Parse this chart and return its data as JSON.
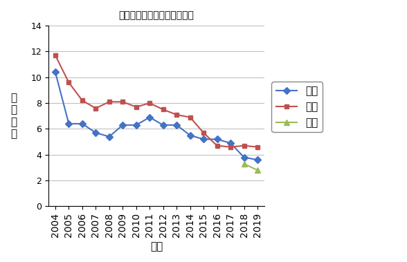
{
  "title": "京都公立中高－貫校倍率推移",
  "xlabel": "年度",
  "ylabel": "出\n願\n倍\n率",
  "years_rakuhoku": [
    2004,
    2005,
    2006,
    2007,
    2008,
    2009,
    2010,
    2011,
    2012,
    2013,
    2014,
    2015,
    2016,
    2017,
    2018,
    2019
  ],
  "values_rakuhoku": [
    10.4,
    6.4,
    6.4,
    5.7,
    5.4,
    6.3,
    6.3,
    6.9,
    6.3,
    6.3,
    5.5,
    5.2,
    5.2,
    4.9,
    3.8,
    3.6
  ],
  "years_saikyo": [
    2004,
    2005,
    2006,
    2007,
    2008,
    2009,
    2010,
    2011,
    2012,
    2013,
    2014,
    2015,
    2016,
    2017,
    2018,
    2019
  ],
  "values_saikyo": [
    11.7,
    9.6,
    8.2,
    7.6,
    8.1,
    8.1,
    7.7,
    8.0,
    7.5,
    7.1,
    6.9,
    5.7,
    4.7,
    4.6,
    4.7,
    4.6
  ],
  "years_nanyo": [
    2018,
    2019
  ],
  "values_nanyo": [
    3.3,
    2.8
  ],
  "color_rakuhoku": "#4472C4",
  "color_saikyo": "#C0504D",
  "color_nanyo": "#9BBB59",
  "ylim": [
    0,
    14
  ],
  "yticks": [
    0,
    2,
    4,
    6,
    8,
    10,
    12,
    14
  ],
  "legend_labels": [
    "洛北",
    "西京",
    "南陽"
  ],
  "title_fontsize": 16,
  "label_fontsize": 11,
  "tick_fontsize": 9,
  "legend_fontsize": 11
}
